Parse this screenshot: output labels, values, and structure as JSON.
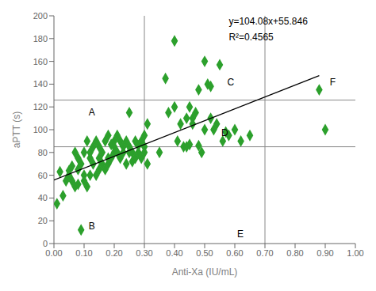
{
  "chart_data": {
    "type": "scatter",
    "x_label": "Anti-Xa (IU/mL)",
    "y_label": "aPTT (s)",
    "grid": false,
    "xlim": [
      0.0,
      1.0
    ],
    "ylim": [
      0,
      200
    ],
    "xticks": [
      {
        "value": 0.0,
        "label": "0.00"
      },
      {
        "value": 0.1,
        "label": "0.10"
      },
      {
        "value": 0.2,
        "label": "0.20"
      },
      {
        "value": 0.3,
        "label": "0.30"
      },
      {
        "value": 0.4,
        "label": "0.40"
      },
      {
        "value": 0.5,
        "label": "0.50"
      },
      {
        "value": 0.6,
        "label": "0.60"
      },
      {
        "value": 0.7,
        "label": "0.70"
      },
      {
        "value": 0.8,
        "label": "0.80"
      },
      {
        "value": 0.9,
        "label": "0.90"
      },
      {
        "value": 1.0,
        "label": "1.00"
      }
    ],
    "yticks": [
      0,
      20,
      40,
      60,
      80,
      100,
      120,
      140,
      160,
      180,
      200
    ],
    "series": [
      {
        "type": "scatter",
        "marker": "diamond",
        "color": "#2ca02c",
        "x": [
          0.01,
          0.02,
          0.03,
          0.04,
          0.05,
          0.05,
          0.06,
          0.06,
          0.07,
          0.07,
          0.08,
          0.08,
          0.08,
          0.09,
          0.09,
          0.1,
          0.1,
          0.1,
          0.11,
          0.11,
          0.12,
          0.12,
          0.12,
          0.13,
          0.13,
          0.14,
          0.14,
          0.15,
          0.15,
          0.15,
          0.16,
          0.16,
          0.17,
          0.17,
          0.18,
          0.18,
          0.18,
          0.19,
          0.19,
          0.2,
          0.2,
          0.2,
          0.21,
          0.21,
          0.22,
          0.22,
          0.23,
          0.23,
          0.24,
          0.24,
          0.25,
          0.25,
          0.25,
          0.26,
          0.26,
          0.27,
          0.27,
          0.28,
          0.28,
          0.29,
          0.29,
          0.3,
          0.3,
          0.3,
          0.31,
          0.31,
          0.35,
          0.37,
          0.38,
          0.4,
          0.4,
          0.41,
          0.42,
          0.43,
          0.44,
          0.44,
          0.45,
          0.45,
          0.46,
          0.46,
          0.47,
          0.48,
          0.48,
          0.49,
          0.5,
          0.5,
          0.51,
          0.52,
          0.52,
          0.53,
          0.54,
          0.55,
          0.56,
          0.57,
          0.58,
          0.6,
          0.62,
          0.65,
          0.88,
          0.9
        ],
        "values": [
          35,
          63,
          42,
          55,
          60,
          64,
          68,
          55,
          80,
          50,
          65,
          75,
          52,
          70,
          12,
          55,
          80,
          60,
          90,
          50,
          75,
          80,
          60,
          85,
          70,
          90,
          60,
          75,
          85,
          65,
          80,
          70,
          90,
          65,
          75,
          95,
          70,
          87,
          75,
          80,
          90,
          85,
          95,
          80,
          90,
          75,
          85,
          80,
          90,
          70,
          80,
          85,
          115,
          72,
          80,
          90,
          75,
          86,
          80,
          90,
          75,
          85,
          95,
          80,
          105,
          70,
          80,
          145,
          115,
          178,
          120,
          90,
          105,
          85,
          110,
          85,
          120,
          87,
          105,
          110,
          115,
          86,
          135,
          80,
          100,
          160,
          140,
          138,
          110,
          100,
          105,
          157,
          90,
          98,
          95,
          100,
          90,
          95,
          135,
          100
        ]
      },
      {
        "type": "line",
        "color": "#000000",
        "x": [
          0.0,
          0.88
        ],
        "values": [
          55.846,
          147.4364
        ]
      }
    ],
    "reference_lines": {
      "y": [
        85,
        126
      ],
      "x": [
        0.3,
        0.7
      ],
      "color": "#888888"
    },
    "annotations": [
      {
        "text": "A",
        "x": 0.115,
        "y": 115
      },
      {
        "text": "B",
        "x": 0.115,
        "y": 15
      },
      {
        "text": "C",
        "x": 0.575,
        "y": 142
      },
      {
        "text": "D",
        "x": 0.555,
        "y": 97
      },
      {
        "text": "E",
        "x": 0.608,
        "y": 8
      },
      {
        "text": "F",
        "x": 0.915,
        "y": 142
      },
      {
        "text": "y=104.08x+55.846",
        "x": 0.58,
        "y": 195
      },
      {
        "text": "R²=0.4565",
        "x": 0.58,
        "y": 181
      }
    ]
  }
}
